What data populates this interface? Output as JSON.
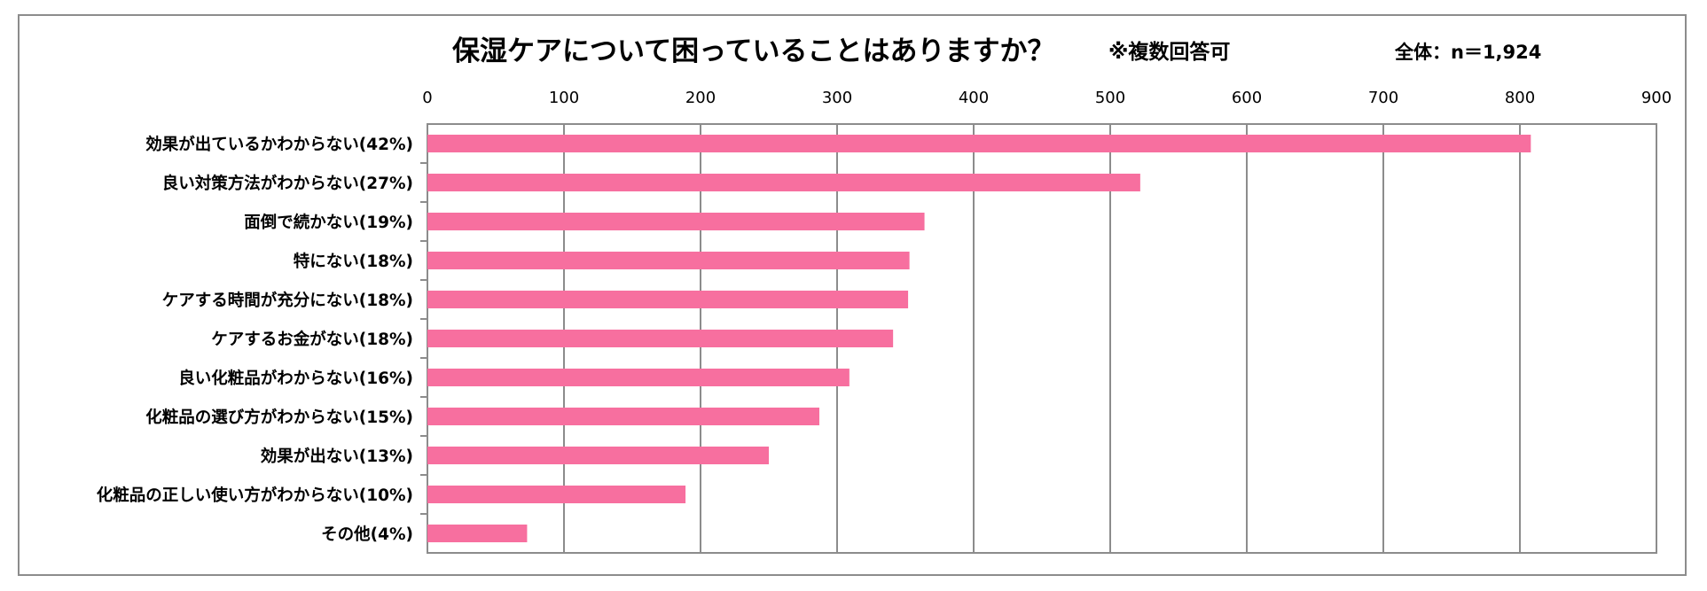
{
  "chart_data": {
    "type": "bar",
    "orientation": "horizontal",
    "title": "保湿ケアについて困っていることはありますか？",
    "title_note": "※複数回答可",
    "sample_label": "全体：n＝1,924",
    "xlim": [
      0,
      900
    ],
    "x_ticks": [
      "0",
      "100",
      "200",
      "300",
      "400",
      "500",
      "600",
      "700",
      "800",
      "900"
    ],
    "x_grid": true,
    "categories": [
      "効果が出ているかわからない(42%)",
      "良い対策方法がわからない(27%)",
      "面倒で続かない(19%)",
      "特にない(18%)",
      "ケアする時間が充分にない(18%)",
      "ケアするお金がない(18%)",
      "良い化粧品がわからない(16%)",
      "化粧品の選び方がわからない(15%)",
      "効果が出ない(13%)",
      "化粧品の正しい使い方がわからない(10%)",
      "その他(4%)"
    ],
    "values": [
      808,
      522,
      364,
      353,
      352,
      341,
      309,
      287,
      250,
      189,
      73
    ],
    "bar_color": "#f76f9f",
    "grid_color": "#8c8c8c"
  }
}
